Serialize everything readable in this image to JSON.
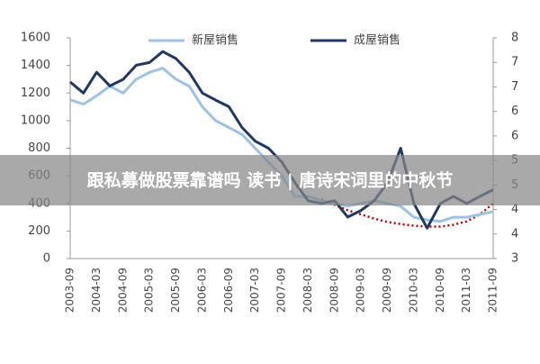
{
  "chart_data": {
    "type": "line",
    "categories": [
      "2003-09",
      null,
      "2004-03",
      null,
      "2004-09",
      null,
      "2005-03",
      null,
      "2005-09",
      null,
      "2006-03",
      null,
      "2006-09",
      null,
      "2007-03",
      null,
      "2007-09",
      null,
      "2008-03",
      null,
      "2008-09",
      null,
      "2009-03",
      null,
      "2009-09",
      null,
      "2010-03",
      null,
      "2010-09",
      null,
      "2011-03",
      null,
      "2011-09"
    ],
    "series": [
      {
        "name": "新屋销售",
        "color": "#9cc3e6",
        "values": [
          1150,
          1120,
          1180,
          1250,
          1200,
          1300,
          1350,
          1380,
          1300,
          1250,
          1100,
          1000,
          950,
          900,
          800,
          700,
          600,
          450,
          450,
          420,
          400,
          380,
          400,
          420,
          400,
          380,
          300,
          280,
          270,
          300,
          300,
          320,
          340
        ]
      },
      {
        "name": "成屋销售",
        "color": "#1f3864",
        "axis": "y2",
        "values": [
          7.0,
          6.75,
          7.22,
          6.91,
          7.06,
          7.38,
          7.44,
          7.69,
          7.53,
          7.22,
          6.75,
          6.59,
          6.44,
          5.97,
          5.66,
          5.5,
          5.19,
          4.72,
          4.31,
          4.25,
          4.31,
          3.94,
          4.09,
          4.31,
          4.72,
          5.5,
          4.25,
          3.69,
          4.25,
          4.41,
          4.25,
          4.41,
          4.56
        ]
      }
    ],
    "trend": {
      "color": "#c00000",
      "values": [
        null,
        null,
        null,
        null,
        null,
        null,
        null,
        null,
        null,
        null,
        null,
        null,
        null,
        null,
        null,
        null,
        null,
        null,
        null,
        430,
        390,
        350,
        320,
        290,
        265,
        250,
        238,
        232,
        232,
        245,
        270,
        320,
        400
      ]
    },
    "ylim": [
      0,
      1600
    ],
    "yticks": [
      0,
      200,
      400,
      600,
      800,
      1000,
      1200,
      1400,
      1600
    ],
    "y2lim": [
      3,
      8
    ],
    "y2ticks": [
      {
        "value": 3,
        "label": "3"
      },
      {
        "value": 3.556,
        "label": "4"
      },
      {
        "value": 4.111,
        "label": "4"
      },
      {
        "value": 4.667,
        "label": "5"
      },
      {
        "value": 5.222,
        "label": "5"
      },
      {
        "value": 5.778,
        "label": "6"
      },
      {
        "value": 6.333,
        "label": "6"
      },
      {
        "value": 6.889,
        "label": "7"
      },
      {
        "value": 7.444,
        "label": "7"
      },
      {
        "value": 8,
        "label": "8"
      }
    ],
    "legend": "top"
  },
  "banner": {
    "text": "跟私募做股票靠谱吗 读书 | 唐诗宋词里的中秋节"
  }
}
